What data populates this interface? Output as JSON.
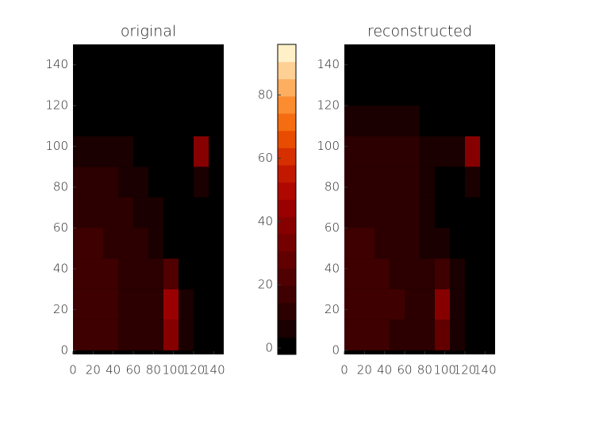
{
  "chart_data": [
    {
      "type": "heatmap",
      "title": "original",
      "x": [
        7.5,
        22.5,
        37.5,
        52.5,
        67.5,
        82.5,
        97.5,
        112.5,
        127.5,
        142.5
      ],
      "y": [
        7.5,
        22.5,
        37.5,
        52.5,
        67.5,
        82.5,
        97.5,
        112.5,
        127.5,
        142.5
      ],
      "z": [
        [
          18,
          17,
          16,
          14,
          12,
          12,
          38,
          5,
          0,
          0
        ],
        [
          17,
          17,
          16,
          14,
          12,
          11,
          45,
          6,
          0,
          0
        ],
        [
          16,
          16,
          15,
          13,
          11,
          9,
          20,
          3,
          0,
          0
        ],
        [
          15,
          15,
          14,
          12,
          10,
          7,
          3,
          0,
          0,
          0
        ],
        [
          13,
          13,
          12,
          10,
          8,
          5,
          1,
          0,
          0,
          0
        ],
        [
          11,
          11,
          10,
          8,
          5,
          2,
          0,
          0,
          5,
          0
        ],
        [
          8,
          8,
          7,
          5,
          2,
          0,
          0,
          0,
          40,
          2
        ],
        [
          2,
          2,
          1,
          0,
          0,
          0,
          0,
          0,
          1,
          0
        ],
        [
          0,
          0,
          0,
          0,
          0,
          0,
          0,
          0,
          0,
          0
        ],
        [
          0,
          0,
          0,
          0,
          0,
          0,
          0,
          0,
          0,
          0
        ]
      ],
      "xlim": [
        0,
        150
      ],
      "ylim": [
        -2,
        150
      ],
      "xticks": [
        0,
        20,
        40,
        60,
        80,
        100,
        120,
        140
      ],
      "yticks": [
        0,
        20,
        40,
        60,
        80,
        100,
        120,
        140
      ]
    },
    {
      "type": "heatmap",
      "title": "reconstructed",
      "x": [
        7.5,
        22.5,
        37.5,
        52.5,
        67.5,
        82.5,
        97.5,
        112.5,
        127.5,
        142.5
      ],
      "y": [
        7.5,
        22.5,
        37.5,
        52.5,
        67.5,
        82.5,
        97.5,
        112.5,
        127.5,
        142.5
      ],
      "z": [
        [
          16,
          16,
          15,
          14,
          13,
          12,
          30,
          6,
          2,
          0
        ],
        [
          17,
          16,
          16,
          15,
          13,
          12,
          40,
          8,
          3,
          1
        ],
        [
          16,
          16,
          15,
          14,
          12,
          10,
          18,
          4,
          1,
          0
        ],
        [
          15,
          15,
          14,
          13,
          11,
          8,
          4,
          1,
          0,
          0
        ],
        [
          14,
          14,
          13,
          12,
          10,
          8,
          3,
          1,
          0,
          0
        ],
        [
          12,
          12,
          12,
          11,
          9,
          7,
          3,
          1,
          6,
          0
        ],
        [
          11,
          12,
          12,
          11,
          10,
          8,
          6,
          5,
          38,
          3
        ],
        [
          6,
          6,
          6,
          5,
          4,
          3,
          1,
          0,
          2,
          0
        ],
        [
          2,
          2,
          1,
          1,
          0,
          0,
          0,
          0,
          0,
          0
        ],
        [
          0,
          0,
          0,
          0,
          0,
          0,
          0,
          0,
          0,
          0
        ]
      ],
      "xlim": [
        0,
        150
      ],
      "ylim": [
        -2,
        150
      ],
      "xticks": [
        0,
        20,
        40,
        60,
        80,
        100,
        120,
        140
      ],
      "yticks": [
        0,
        20,
        40,
        60,
        80,
        100,
        120,
        140
      ]
    },
    {
      "type": "colorbar",
      "ylim": [
        -2,
        96
      ],
      "yticks": [
        0,
        20,
        40,
        60,
        80
      ],
      "colors": [
        "#000000",
        "#1a0000",
        "#2c0000",
        "#3e0000",
        "#500000",
        "#620000",
        "#740000",
        "#870000",
        "#9a0000",
        "#ae0800",
        "#c21800",
        "#d63000",
        "#e84c00",
        "#f66c10",
        "#fb8c30",
        "#fdae60",
        "#fed094",
        "#fff0c8"
      ]
    }
  ]
}
